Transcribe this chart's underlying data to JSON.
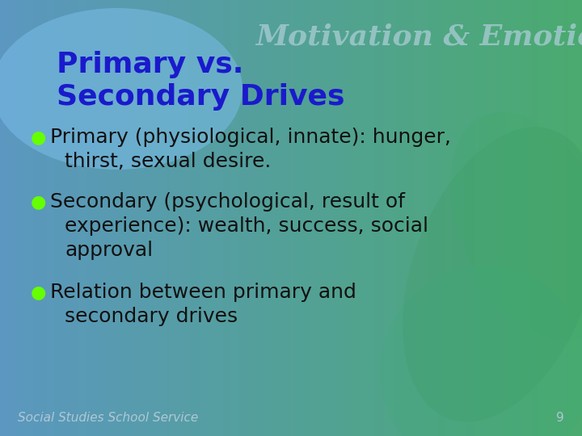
{
  "title_line1": "Primary vs.",
  "title_line2": "Secondary Drives",
  "watermark": "Motivation & Emotion",
  "footer": "Social Studies School Service",
  "page_number": "9",
  "bullets": [
    {
      "line1": "Primary (physiological, innate): hunger,",
      "line2": "thirst, sexual desire."
    },
    {
      "line1": "Secondary (psychological, result of",
      "line2": "experience): wealth, success, social",
      "line3": "approval"
    },
    {
      "line1": "Relation between primary and",
      "line2": "secondary drives"
    }
  ],
  "bg_left": "#5b97c0",
  "bg_right": "#4aaa6e",
  "title_color": "#1a1acc",
  "title_bubble_color": "#7abde8",
  "bullet_dot_color": "#66ff00",
  "text_color": "#111111",
  "watermark_color": "#a0c8cc",
  "footer_color": "#b0c8d4",
  "title_fontsize": 26,
  "bullet_fontsize": 18,
  "watermark_fontsize": 26,
  "footer_fontsize": 11,
  "page_fontsize": 11
}
